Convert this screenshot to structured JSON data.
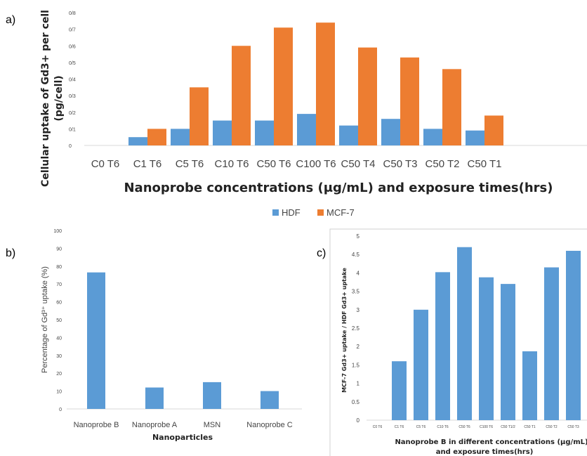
{
  "panels": {
    "a": "a)",
    "b": "b)",
    "c": "c)"
  },
  "chart_data": [
    {
      "id": "a",
      "type": "bar",
      "categories": [
        "C0 T6",
        "C1 T6",
        "C5 T6",
        "C10 T6",
        "C50 T6",
        "C100 T6",
        "C50 T4",
        "C50 T3",
        "C50 T2",
        "C50 T1"
      ],
      "series": [
        {
          "name": "HDF",
          "color": "#5B9BD5",
          "values": [
            0,
            0.05,
            0.1,
            0.15,
            0.15,
            0.19,
            0.12,
            0.16,
            0.1,
            0.09
          ]
        },
        {
          "name": "MCF-7",
          "color": "#ED7D31",
          "values": [
            0,
            0.1,
            0.35,
            0.6,
            0.71,
            0.74,
            0.59,
            0.53,
            0.46,
            0.18
          ]
        }
      ],
      "ylim": [
        0,
        0.8
      ],
      "yticks": [
        "0",
        "0/1",
        "0/2",
        "0/3",
        "0/4",
        "0/5",
        "0/6",
        "0/7",
        "0/8"
      ],
      "ylabel_line1": "Cellular uptake of Gd3+ per cell",
      "ylabel_line2": "(pg/cell)",
      "xlabel": "Nanoprobe concentrations (μg/mL) and exposure times(hrs)",
      "legend": {
        "position": "bottom-center",
        "entries": [
          "HDF",
          "MCF-7"
        ]
      }
    },
    {
      "id": "b",
      "type": "bar",
      "categories": [
        "Nanoprobe B",
        "Nanoprobe A",
        "MSN",
        "Nanoprobe C"
      ],
      "values": [
        76.5,
        12,
        15,
        10
      ],
      "color": "#5B9BD5",
      "ylim": [
        0,
        100
      ],
      "yticks": [
        "0",
        "10",
        "20",
        "30",
        "40",
        "50",
        "60",
        "70",
        "80",
        "90",
        "100"
      ],
      "ylabel": "Percentage of Gd³⁺ uptake (%)",
      "xlabel": "Nanoparticles"
    },
    {
      "id": "c",
      "type": "bar",
      "categories": [
        "C0 T6",
        "C1 T6",
        "C5 T6",
        "C10 T6",
        "C50 T6",
        "C100 T6",
        "C50 T1/2",
        "C50 T1",
        "C50 T2",
        "C50 T3"
      ],
      "values": [
        0,
        1.6,
        3.0,
        4.02,
        4.7,
        3.88,
        3.7,
        1.87,
        4.15,
        4.6
      ],
      "color": "#5B9BD5",
      "ylim": [
        0,
        5
      ],
      "yticks": [
        "0",
        "0.5",
        "1",
        "1.5",
        "2",
        "2.5",
        "3",
        "3.5",
        "4",
        "4.5",
        "5"
      ],
      "ylabel": "MCF-7 Gd3+ uptake / HDF Gd3+ uptake",
      "xlabel_line1": "Nanoprobe B  in different concentrations (μg/mL)",
      "xlabel_line2": "and exposure times(hrs)"
    }
  ]
}
